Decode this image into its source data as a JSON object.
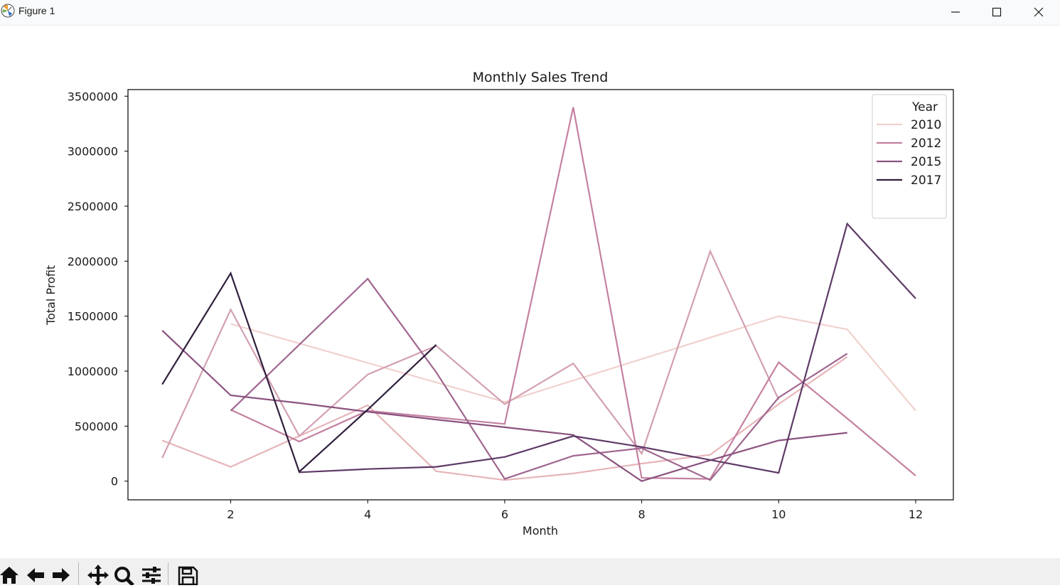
{
  "window": {
    "title": "Figure 1",
    "controls": [
      "minimize-icon",
      "maximize-icon",
      "close-icon"
    ]
  },
  "toolbar": {
    "buttons": [
      "home-icon",
      "back-icon",
      "forward-icon",
      "pan-icon",
      "zoom-icon",
      "configure-subplots-icon",
      "save-icon"
    ]
  },
  "chart_data": {
    "type": "line",
    "title": "Monthly Sales Trend",
    "xlabel": "Month",
    "ylabel": "Total Profit",
    "xlim": [
      0.5,
      12.55
    ],
    "ylim": [
      -170000,
      3560000
    ],
    "xticks": [
      2,
      4,
      6,
      8,
      10,
      12
    ],
    "yticks": [
      0,
      500000,
      1000000,
      1500000,
      2000000,
      2500000,
      3000000,
      3500000
    ],
    "grid": false,
    "legend": {
      "title": "Year",
      "placement": "upper right"
    },
    "series": [
      {
        "name": "2010",
        "color": "#f0d1cc",
        "x": [
          2,
          6,
          10,
          11,
          12
        ],
        "y": [
          1430000,
          720000,
          1500000,
          1380000,
          640000
        ]
      },
      {
        "name": "2010",
        "color": "#e6b4b8",
        "x": [
          1,
          2,
          4,
          5,
          6,
          7,
          8,
          9,
          10,
          11
        ],
        "y": [
          370000,
          130000,
          690000,
          90000,
          10000,
          70000,
          160000,
          240000,
          700000,
          1130000
        ]
      },
      {
        "name": "2012",
        "color": "#d39fb2",
        "x": [
          1,
          2,
          3,
          4,
          5,
          6,
          7,
          8,
          9,
          10
        ],
        "y": [
          210000,
          1560000,
          410000,
          970000,
          1230000,
          700000,
          1070000,
          250000,
          2090000,
          740000
        ]
      },
      {
        "name": "2012",
        "color": "#c480a0",
        "x": [
          2,
          3,
          4,
          5,
          6,
          7,
          8,
          9,
          10,
          11,
          12
        ],
        "y": [
          650000,
          360000,
          640000,
          580000,
          520000,
          3400000,
          30000,
          20000,
          1080000,
          570000,
          50000
        ]
      },
      {
        "name": "2015",
        "color": "#a0668f",
        "x": [
          2,
          4,
          5,
          6,
          7,
          8,
          9,
          10,
          11
        ],
        "y": [
          640000,
          1840000,
          990000,
          20000,
          230000,
          300000,
          10000,
          760000,
          1160000
        ]
      },
      {
        "name": "2015",
        "color": "#8a527f",
        "x": [
          1,
          2,
          3,
          4,
          5,
          6,
          7,
          8,
          9,
          10,
          11
        ],
        "y": [
          1370000,
          780000,
          710000,
          630000,
          560000,
          490000,
          420000,
          0,
          190000,
          370000,
          440000
        ]
      },
      {
        "name": "2017",
        "color": "#5e3a66",
        "x": [
          3,
          4,
          5,
          6,
          7,
          8,
          10,
          11,
          12
        ],
        "y": [
          80000,
          110000,
          130000,
          220000,
          410000,
          310000,
          75000,
          2340000,
          1660000
        ]
      },
      {
        "name": "2017",
        "color": "#2f1e3c",
        "x": [
          1,
          2,
          3,
          4,
          5
        ],
        "y": [
          880000,
          1890000,
          85000,
          650000,
          1240000
        ]
      }
    ],
    "legend_entries": [
      {
        "label": "2010",
        "color": "#f0d1cc"
      },
      {
        "label": "2012",
        "color": "#c480a0"
      },
      {
        "label": "2015",
        "color": "#8a527f"
      },
      {
        "label": "2017",
        "color": "#2f1e3c"
      }
    ]
  }
}
